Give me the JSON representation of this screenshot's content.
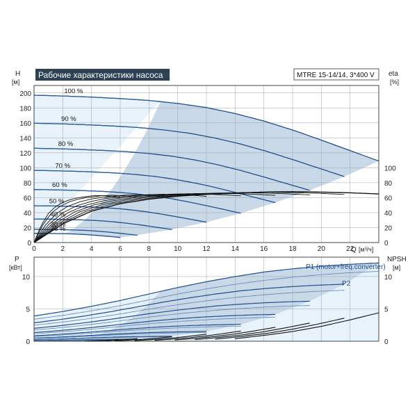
{
  "chart_data": [
    {
      "type": "line",
      "title": "Рабочие характеристики насоса",
      "model": "MTRE 15-14/14, 3*400 V",
      "ylabel": "H",
      "yunit": "[м]",
      "y2label": "eta",
      "y2unit": "[%]",
      "xlabel": "Q",
      "xunit": "[м³/ч]",
      "xlim": [
        0,
        24
      ],
      "ylim": [
        0,
        210
      ],
      "xticks": [
        "0",
        "2",
        "4",
        "6",
        "8",
        "10",
        "12",
        "14",
        "16",
        "18",
        "20",
        "22"
      ],
      "yticks": [
        "0",
        "20",
        "40",
        "60",
        "80",
        "100",
        "120",
        "140",
        "160",
        "180",
        "200"
      ],
      "y2ticks": [
        "0",
        "20",
        "40",
        "60",
        "80",
        "100"
      ],
      "speed_labels": [
        "100 %",
        "90 %",
        "80 %",
        "70 %",
        "60 %",
        "50 %",
        "40 %",
        "30 %",
        "25 %"
      ],
      "speed_fractions": [
        1.0,
        0.9,
        0.8,
        0.7,
        0.6,
        0.5,
        0.4,
        0.3,
        0.25
      ],
      "head_curve_100": {
        "q": [
          0,
          2,
          4,
          6,
          8,
          10,
          12,
          14,
          16,
          18,
          20,
          22,
          24
        ],
        "h": [
          197,
          196,
          194.5,
          192.5,
          190,
          186,
          180.5,
          172.5,
          162.5,
          150.5,
          137,
          123,
          109
        ]
      },
      "efficiency_curve_100": {
        "q": [
          0,
          2,
          4,
          6,
          8,
          10,
          12,
          14,
          16,
          18,
          20,
          22,
          24
        ],
        "eta": [
          0,
          25,
          42,
          52,
          58,
          62,
          64.5,
          66,
          67.5,
          68,
          67.5,
          66.5,
          65
        ]
      },
      "grid": true
    },
    {
      "type": "line",
      "ylabel": "P",
      "yunit": "[кВт]",
      "y2label": "NPSH",
      "y2unit": "[м]",
      "xlim": [
        0,
        24
      ],
      "ylim": [
        0,
        13
      ],
      "yticks": [
        "0",
        "5",
        "10"
      ],
      "y2ticks": [
        "0",
        "5",
        "10"
      ],
      "series_names": [
        "P1 (motor+freq.converter)",
        "P2"
      ],
      "power_curve_100": {
        "q": [
          0,
          2,
          4,
          6,
          8,
          10,
          12,
          14,
          16,
          18,
          20,
          22,
          24
        ],
        "p1": [
          3.9,
          4.6,
          5.4,
          6.3,
          7.3,
          8.3,
          9.2,
          10.0,
          10.7,
          11.2,
          11.6,
          11.9,
          12.1
        ],
        "p2": [
          3.4,
          4.0,
          4.7,
          5.5,
          6.4,
          7.3,
          8.1,
          8.8,
          9.4,
          9.9,
          10.3,
          10.6,
          10.8
        ]
      },
      "npsh_curve_100": {
        "q": [
          14,
          16,
          18,
          20,
          22,
          24
        ],
        "npsh": [
          0.4,
          0.9,
          1.5,
          2.3,
          3.3,
          4.4
        ]
      },
      "grid": true
    }
  ]
}
